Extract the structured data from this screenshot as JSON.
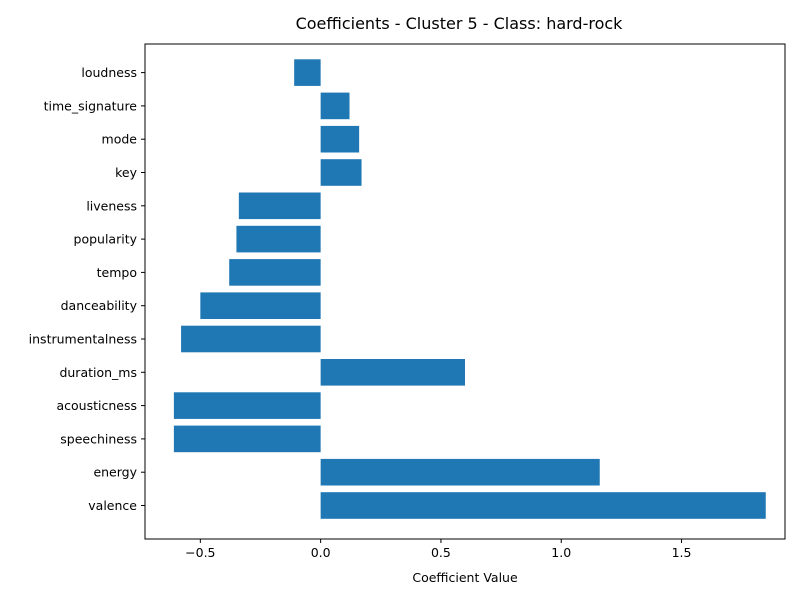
{
  "chart_data": {
    "type": "bar",
    "orientation": "horizontal",
    "title": "Coefficients - Cluster 5 - Class: hard-rock",
    "xlabel": "Coefficient Value",
    "ylabel": "",
    "categories": [
      "valence",
      "energy",
      "speechiness",
      "acousticness",
      "duration_ms",
      "instrumentalness",
      "danceability",
      "tempo",
      "popularity",
      "liveness",
      "key",
      "mode",
      "time_signature",
      "loudness"
    ],
    "values": [
      1.85,
      1.16,
      -0.61,
      -0.61,
      0.6,
      -0.58,
      -0.5,
      -0.38,
      -0.35,
      -0.34,
      0.17,
      0.16,
      0.12,
      -0.11
    ],
    "xlim": [
      -0.73,
      1.93
    ],
    "xticks": [
      -0.5,
      0.0,
      0.5,
      1.0,
      1.5
    ],
    "xtick_labels": [
      "−0.5",
      "0.0",
      "0.5",
      "1.0",
      "1.5"
    ],
    "grid": false,
    "legend": "none",
    "bar_color": "#1f77b4"
  }
}
